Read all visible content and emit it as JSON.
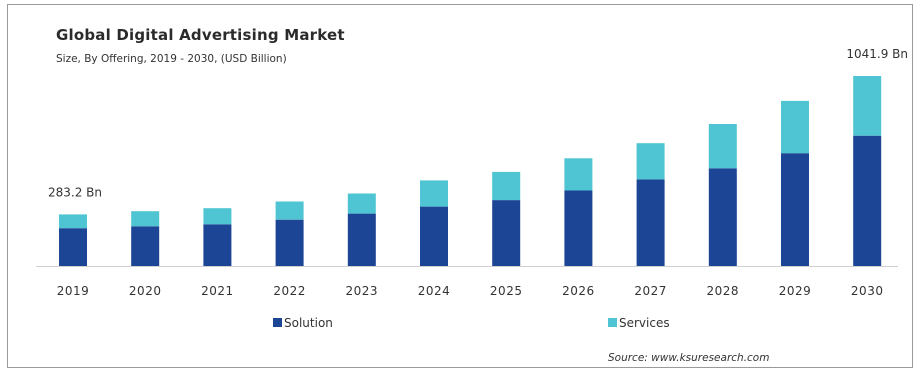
{
  "header": {
    "title": "Global Digital Advertising Market",
    "subtitle": "Size, By Offering, 2019 - 2030, (USD Billion)"
  },
  "footer": {
    "source": "Source: www.ksuresearch.com"
  },
  "colors": {
    "solution": "#1c4596",
    "services": "#4fc4d2",
    "axis": "#d0d0d0"
  },
  "chart_data": {
    "type": "bar",
    "stacked": true,
    "categories": [
      "2019",
      "2020",
      "2021",
      "2022",
      "2023",
      "2024",
      "2025",
      "2026",
      "2027",
      "2028",
      "2029",
      "2030"
    ],
    "series": [
      {
        "name": "Solution",
        "values": [
          207.5,
          217.5,
          228.6,
          254.1,
          287.2,
          325.8,
          361.3,
          414.2,
          474.9,
          535.6,
          618.5,
          714.3
        ]
      },
      {
        "name": "Services",
        "values": [
          75.7,
          82.8,
          88.3,
          99.4,
          110.4,
          143.5,
          154.6,
          176.6,
          198.7,
          242.9,
          287.0,
          327.6
        ]
      }
    ],
    "totals_labels": [
      {
        "category": "2019",
        "text": "283.2 Bn"
      },
      {
        "category": "2030",
        "text": "1041.9  Bn"
      }
    ],
    "ylim": [
      0,
      1041.9
    ],
    "grid": false,
    "legend_position": "bottom"
  }
}
